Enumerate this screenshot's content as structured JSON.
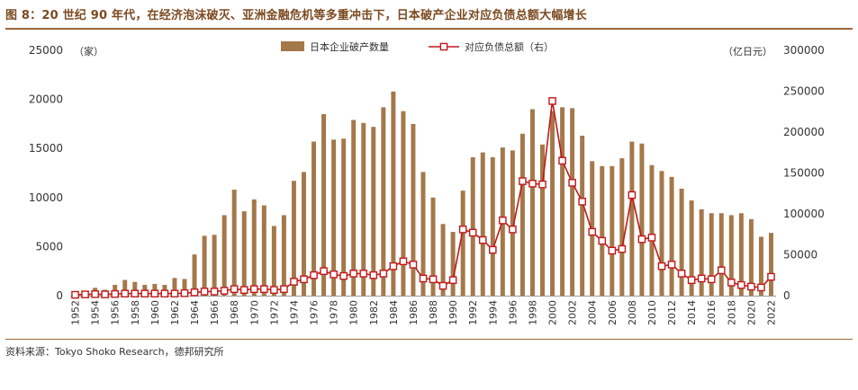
{
  "title": "图 8：20 世纪 90 年代，在经济泡沫破灭、亚洲金融危机等多重冲击下，日本破产企业对应负债总额大幅增长",
  "source": "资料来源：Tokyo Shoko Research，德邦研究所",
  "colors": {
    "bar": "#a5784a",
    "line": "#c21818",
    "rule": "#a0663a",
    "title": "#7b4a20"
  },
  "chart_data": {
    "type": "bar+line",
    "left_unit": "（家）",
    "right_unit": "（亿日元）",
    "ylim_left": [
      0,
      25000
    ],
    "ylim_right": [
      0,
      300000
    ],
    "left_ticks": [
      "0",
      "5000",
      "10000",
      "15000",
      "20000",
      "25000"
    ],
    "right_ticks": [
      "0",
      "50000",
      "100000",
      "150000",
      "200000",
      "250000",
      "300000"
    ],
    "x": [
      1952,
      1953,
      1954,
      1955,
      1956,
      1957,
      1958,
      1959,
      1960,
      1961,
      1962,
      1963,
      1964,
      1965,
      1966,
      1967,
      1968,
      1969,
      1970,
      1971,
      1972,
      1973,
      1974,
      1975,
      1976,
      1977,
      1978,
      1979,
      1980,
      1981,
      1982,
      1983,
      1984,
      1985,
      1986,
      1987,
      1988,
      1989,
      1990,
      1991,
      1992,
      1993,
      1994,
      1995,
      1996,
      1997,
      1998,
      1999,
      2000,
      2001,
      2002,
      2003,
      2004,
      2005,
      2006,
      2007,
      2008,
      2009,
      2010,
      2011,
      2012,
      2013,
      2014,
      2015,
      2016,
      2017,
      2018,
      2019,
      2020,
      2021,
      2022
    ],
    "x_tick_labels": [
      "1952",
      "1954",
      "1956",
      "1958",
      "1960",
      "1962",
      "1964",
      "1966",
      "1968",
      "1970",
      "1972",
      "1974",
      "1976",
      "1978",
      "1980",
      "1982",
      "1984",
      "1986",
      "1988",
      "1990",
      "1992",
      "1994",
      "1996",
      "1998",
      "2000",
      "2002",
      "2004",
      "2006",
      "2008",
      "2010",
      "2012",
      "2014",
      "2016",
      "2018",
      "2020",
      "2022"
    ],
    "series": [
      {
        "name": "日本企业破产数量",
        "type": "bar",
        "axis": "left",
        "values": [
          400,
          500,
          800,
          600,
          1100,
          1600,
          1400,
          1100,
          1200,
          1100,
          1800,
          1700,
          4200,
          6100,
          6200,
          8200,
          10800,
          8600,
          9800,
          9200,
          7100,
          8200,
          11700,
          12600,
          15700,
          18500,
          15900,
          16000,
          17900,
          17600,
          17200,
          19200,
          20800,
          18800,
          17500,
          12600,
          10000,
          7300,
          6500,
          10700,
          14100,
          14600,
          14100,
          15100,
          14800,
          16500,
          19000,
          15400,
          18800,
          19200,
          19100,
          16300,
          13700,
          13200,
          13200,
          14000,
          15700,
          15500,
          13300,
          12700,
          12100,
          10900,
          9700,
          8800,
          8400,
          8400,
          8200,
          8400,
          7800,
          6000,
          6400
        ]
      },
      {
        "name": "对应负债总额（右）",
        "type": "line",
        "axis": "right",
        "values": [
          1000,
          1500,
          1800,
          1500,
          2000,
          2500,
          2500,
          2500,
          2500,
          2500,
          2500,
          3000,
          4000,
          5000,
          5000,
          6000,
          8000,
          7000,
          8000,
          8000,
          7000,
          8000,
          17000,
          20000,
          25000,
          30000,
          26000,
          24000,
          27000,
          27000,
          25000,
          27000,
          36000,
          42000,
          38000,
          21000,
          20000,
          12000,
          19000,
          81000,
          77000,
          68000,
          56000,
          92000,
          81000,
          140000,
          137000,
          136000,
          238000,
          165000,
          138000,
          115000,
          78000,
          67000,
          55000,
          57000,
          123000,
          69000,
          71000,
          36000,
          38000,
          27000,
          19000,
          21000,
          20000,
          31000,
          16000,
          13000,
          11000,
          10000,
          23000
        ]
      }
    ]
  }
}
